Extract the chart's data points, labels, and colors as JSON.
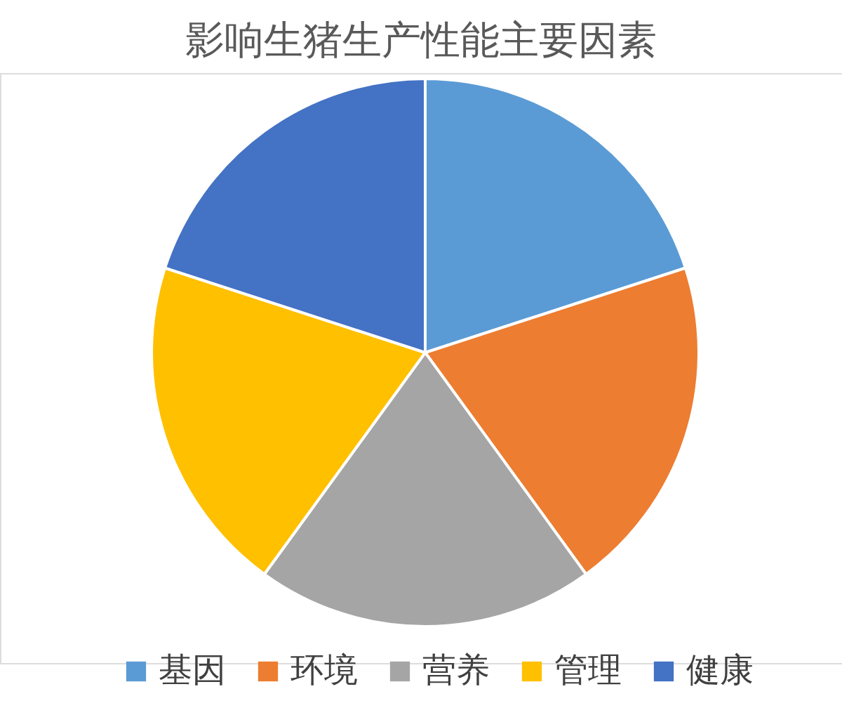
{
  "chart_data": {
    "type": "pie",
    "title": "影响生猪生产性能主要因素",
    "categories": [
      "基因",
      "环境",
      "营养",
      "管理",
      "健康"
    ],
    "values": [
      20,
      20,
      20,
      20,
      20
    ],
    "colors": [
      "#5b9bd5",
      "#ed7d31",
      "#a5a5a5",
      "#ffc000",
      "#4472c4"
    ],
    "legend": "bottom"
  }
}
